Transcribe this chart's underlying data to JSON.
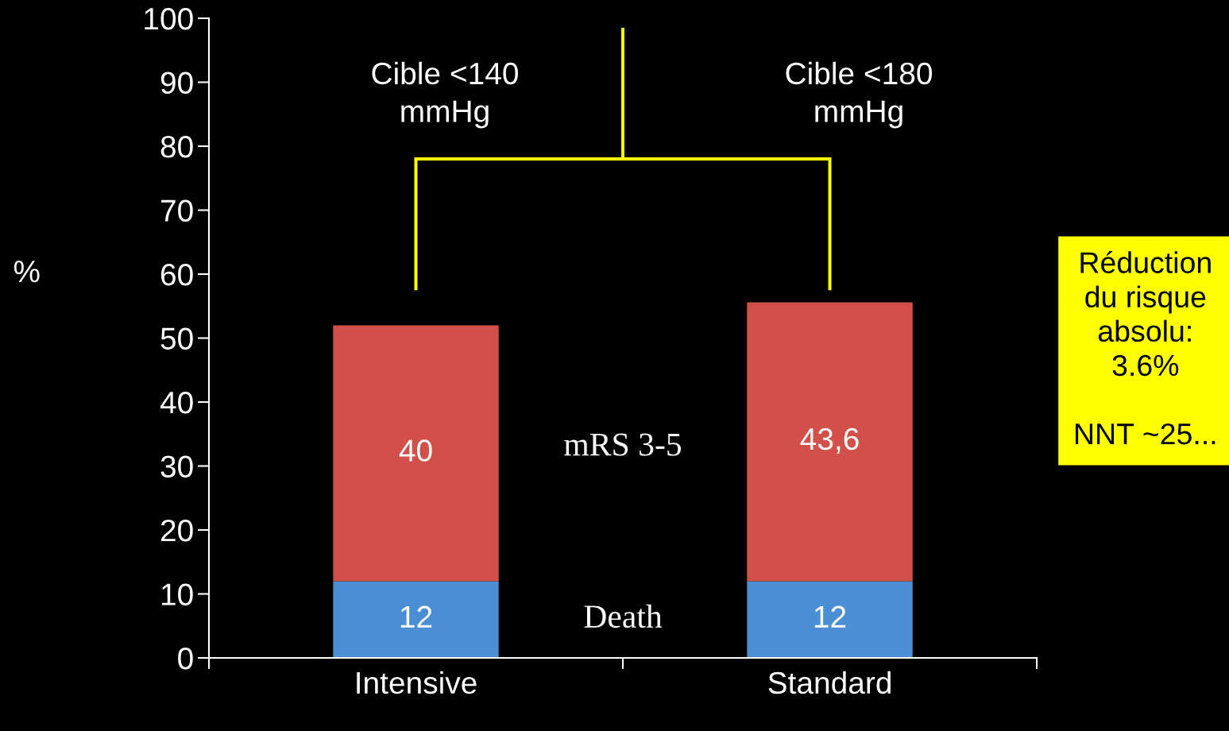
{
  "chart_data": {
    "type": "bar",
    "stacked": true,
    "ylabel": "%",
    "categories": [
      "Intensive",
      "Standard"
    ],
    "series": [
      {
        "name": "Death",
        "color": "#4a8fd4",
        "values": [
          12,
          12
        ],
        "value_labels": [
          "12",
          "12"
        ]
      },
      {
        "name": "mRS 3-5",
        "color": "#d2504a",
        "values": [
          40,
          43.6
        ],
        "value_labels": [
          "40",
          "43,6"
        ]
      }
    ],
    "ylim": [
      0,
      100
    ],
    "yticks": [
      0,
      10,
      20,
      30,
      40,
      50,
      60,
      70,
      80,
      90,
      100
    ],
    "grid": false,
    "legend": false,
    "annotations": [
      "Cible <140\nmmHg",
      "Cible <180\nmmHg",
      "Réduction\ndu risque\nabsolu:\n3.6%\n\nNNT ~25..."
    ]
  }
}
